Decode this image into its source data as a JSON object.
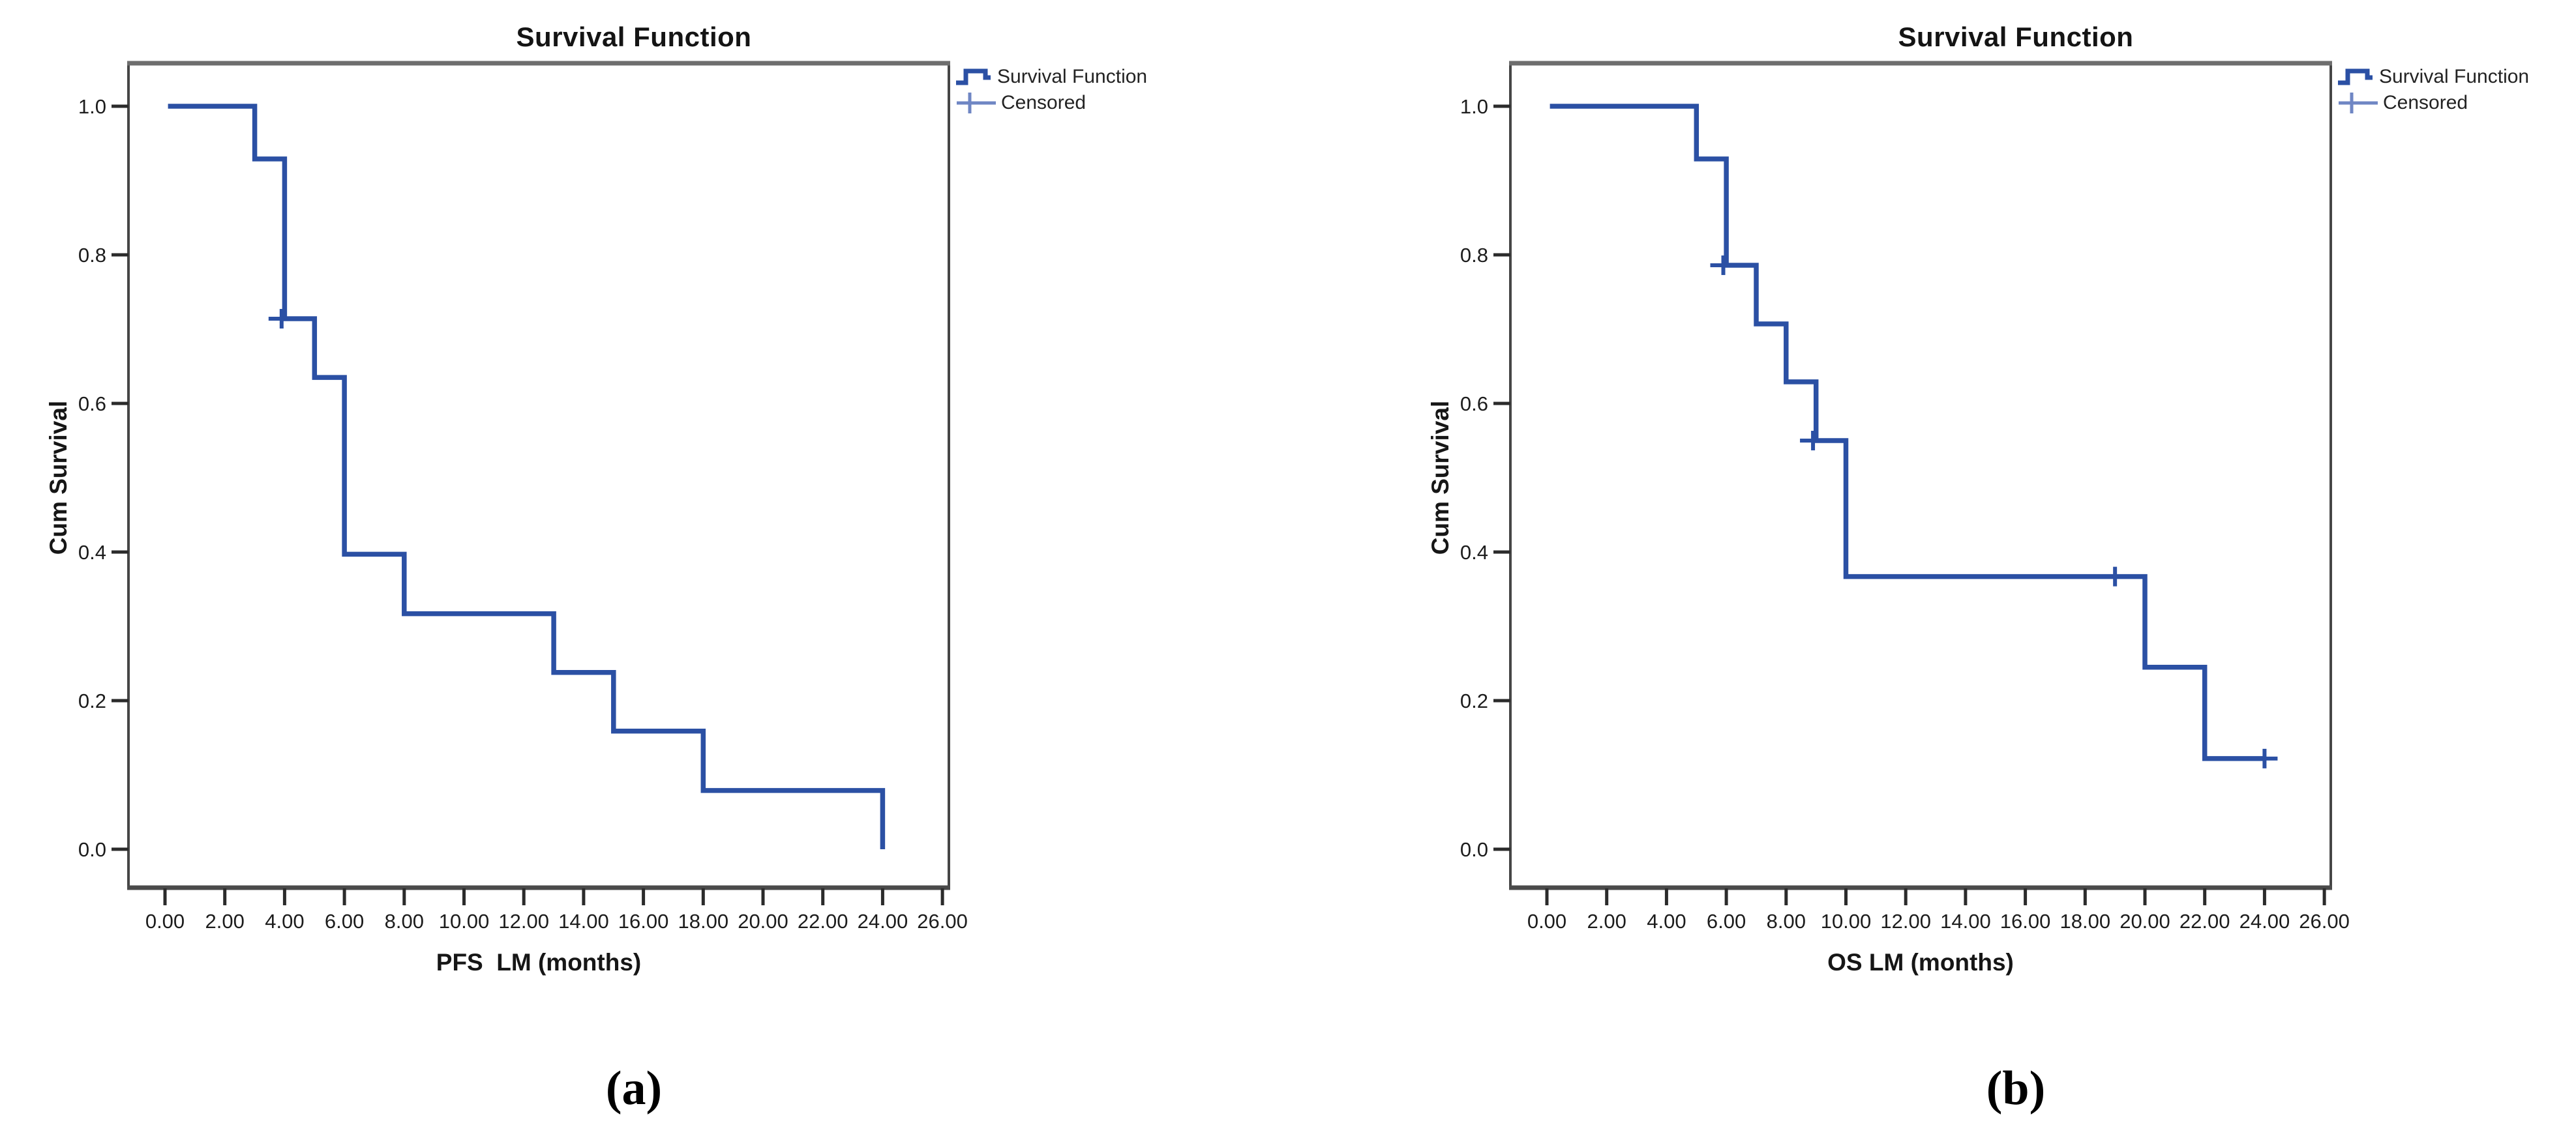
{
  "figure": {
    "colors": {
      "curve_blue": "#2b50a4",
      "censor_legend_blue": "#6f86c4",
      "frame_gray": "#464646",
      "frame_top_gray": "#6e6e6e",
      "tick_black": "#2b2b2b",
      "background": "#ffffff"
    }
  },
  "chart_data": [
    {
      "type": "line",
      "subtype": "kaplan-meier-step",
      "title": "Survival Function",
      "xlabel": "PFS  LM (months)",
      "ylabel": "Cum Survival",
      "panel_label": "(a)",
      "legend_position": "top-right-outside",
      "grid": false,
      "xlim": [
        0,
        26
      ],
      "ylim": [
        0.0,
        1.0
      ],
      "x_tick_values": [
        0,
        2,
        4,
        6,
        8,
        10,
        12,
        14,
        16,
        18,
        20,
        22,
        24,
        26
      ],
      "x_tick_labels": [
        "0.00",
        "2.00",
        "4.00",
        "6.00",
        "8.00",
        "10.00",
        "12.00",
        "14.00",
        "16.00",
        "18.00",
        "20.00",
        "22.00",
        "24.00",
        "26.00"
      ],
      "y_tick_values": [
        0.0,
        0.2,
        0.4,
        0.6,
        0.8,
        1.0
      ],
      "y_tick_labels": [
        "0.0",
        "0.2",
        "0.4",
        "0.6",
        "0.8",
        "1.0"
      ],
      "legend": [
        {
          "label": "Survival Function",
          "symbol": "step-line"
        },
        {
          "label": "Censored",
          "symbol": "plus"
        }
      ],
      "series": [
        {
          "name": "Survival Function",
          "step_points": [
            [
              0.1,
              1.0
            ],
            [
              3,
              1.0
            ],
            [
              3,
              0.929
            ],
            [
              4,
              0.929
            ],
            [
              4,
              0.714
            ],
            [
              5,
              0.714
            ],
            [
              5,
              0.635
            ],
            [
              6,
              0.635
            ],
            [
              6,
              0.397
            ],
            [
              8,
              0.397
            ],
            [
              8,
              0.317
            ],
            [
              13,
              0.317
            ],
            [
              13,
              0.238
            ],
            [
              15,
              0.238
            ],
            [
              15,
              0.159
            ],
            [
              18,
              0.159
            ],
            [
              18,
              0.079
            ],
            [
              24,
              0.079
            ],
            [
              24,
              0.0
            ]
          ]
        }
      ],
      "censored_points": [
        [
          3.9,
          0.714
        ]
      ]
    },
    {
      "type": "line",
      "subtype": "kaplan-meier-step",
      "title": "Survival Function",
      "xlabel": "OS LM (months)",
      "ylabel": "Cum Survival",
      "panel_label": "(b)",
      "legend_position": "top-right-outside",
      "grid": false,
      "xlim": [
        0,
        26
      ],
      "ylim": [
        0.0,
        1.0
      ],
      "x_tick_values": [
        0,
        2,
        4,
        6,
        8,
        10,
        12,
        14,
        16,
        18,
        20,
        22,
        24,
        26
      ],
      "x_tick_labels": [
        "0.00",
        "2.00",
        "4.00",
        "6.00",
        "8.00",
        "10.00",
        "12.00",
        "14.00",
        "16.00",
        "18.00",
        "20.00",
        "22.00",
        "24.00",
        "26.00"
      ],
      "y_tick_values": [
        0.0,
        0.2,
        0.4,
        0.6,
        0.8,
        1.0
      ],
      "y_tick_labels": [
        "0.0",
        "0.2",
        "0.4",
        "0.6",
        "0.8",
        "1.0"
      ],
      "legend": [
        {
          "label": "Survival Function",
          "symbol": "step-line"
        },
        {
          "label": "Censored",
          "symbol": "plus"
        }
      ],
      "series": [
        {
          "name": "Survival Function",
          "step_points": [
            [
              0.1,
              1.0
            ],
            [
              5,
              1.0
            ],
            [
              5,
              0.929
            ],
            [
              6,
              0.929
            ],
            [
              6,
              0.786
            ],
            [
              7,
              0.786
            ],
            [
              7,
              0.707
            ],
            [
              8,
              0.707
            ],
            [
              8,
              0.629
            ],
            [
              9,
              0.629
            ],
            [
              9,
              0.55
            ],
            [
              10,
              0.55
            ],
            [
              10,
              0.367
            ],
            [
              20,
              0.367
            ],
            [
              20,
              0.245
            ],
            [
              22,
              0.245
            ],
            [
              22,
              0.122
            ],
            [
              24,
              0.122
            ]
          ]
        }
      ],
      "censored_points": [
        [
          5.9,
          0.786
        ],
        [
          8.9,
          0.55
        ],
        [
          19,
          0.367
        ],
        [
          24,
          0.122
        ]
      ]
    }
  ]
}
